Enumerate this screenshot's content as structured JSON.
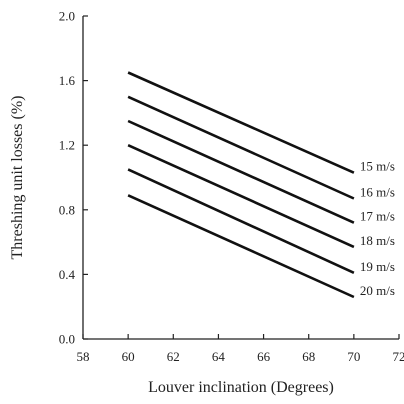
{
  "chart_data": {
    "type": "line",
    "title": "",
    "xlabel": "Louver inclination (Degrees)",
    "ylabel": "Threshing unit losses (%)",
    "xlim": [
      58,
      72
    ],
    "ylim": [
      0.0,
      2.0
    ],
    "x_ticks": [
      "58",
      "60",
      "62",
      "64",
      "66",
      "68",
      "70",
      "72"
    ],
    "y_ticks": [
      "0.0",
      "0.4",
      "0.8",
      "1.2",
      "1.6",
      "2.0"
    ],
    "x_tick_values": [
      58,
      60,
      62,
      64,
      66,
      68,
      70,
      72
    ],
    "y_tick_values": [
      0.0,
      0.4,
      0.8,
      1.2,
      1.6,
      2.0
    ],
    "grid": false,
    "legend": "inline-right",
    "line_color": "#111111",
    "series": [
      {
        "name": "15 m/s",
        "x": [
          60,
          70
        ],
        "values": [
          1.65,
          1.03
        ]
      },
      {
        "name": "16 m/s",
        "x": [
          60,
          70
        ],
        "values": [
          1.5,
          0.87
        ]
      },
      {
        "name": "17 m/s",
        "x": [
          60,
          70
        ],
        "values": [
          1.35,
          0.72
        ]
      },
      {
        "name": "18 m/s",
        "x": [
          60,
          70
        ],
        "values": [
          1.2,
          0.57
        ]
      },
      {
        "name": "19 m/s",
        "x": [
          60,
          70
        ],
        "values": [
          1.05,
          0.41
        ]
      },
      {
        "name": "20 m/s",
        "x": [
          60,
          70
        ],
        "values": [
          0.89,
          0.26
        ]
      }
    ]
  }
}
